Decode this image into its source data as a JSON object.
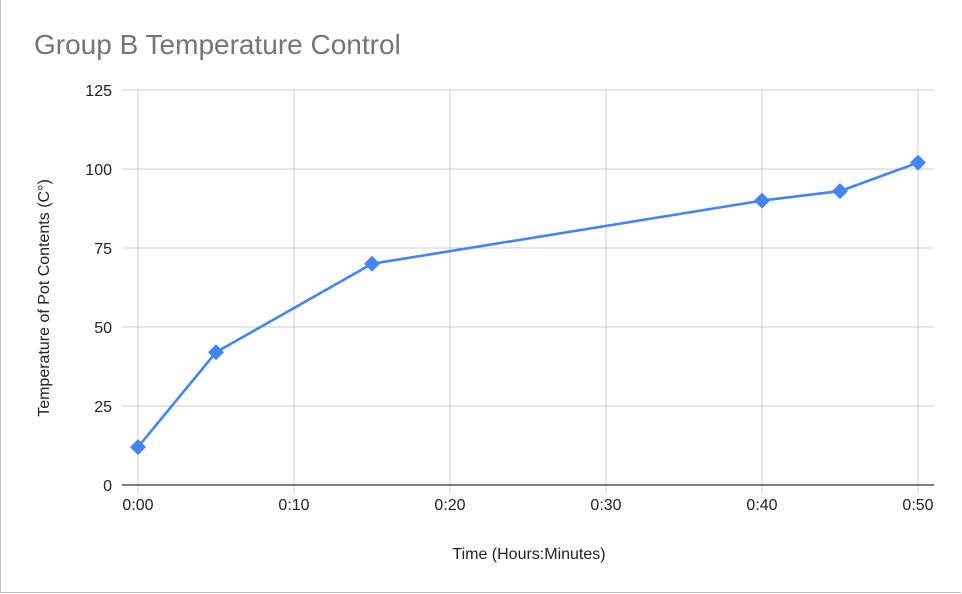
{
  "chart_data": {
    "type": "line",
    "title": "Group B Temperature Control",
    "xlabel": "Time (Hours:Minutes)",
    "ylabel": "Temperature of Pot Contents (C°)",
    "x_ticks": [
      "0:00",
      "0:10",
      "0:20",
      "0:30",
      "0:40",
      "0:50"
    ],
    "y_ticks": [
      "0",
      "25",
      "50",
      "75",
      "100",
      "125"
    ],
    "xlim": [
      "0:00",
      "0:50"
    ],
    "ylim": [
      0,
      125
    ],
    "grid": true,
    "legend": "none",
    "series": [
      {
        "x": [
          "0:00",
          "0:05",
          "0:15",
          "0:40",
          "0:45",
          "0:50"
        ],
        "y": [
          12,
          42,
          70,
          90,
          93,
          102
        ],
        "color": "#4285f4",
        "marker": "diamond"
      }
    ]
  }
}
